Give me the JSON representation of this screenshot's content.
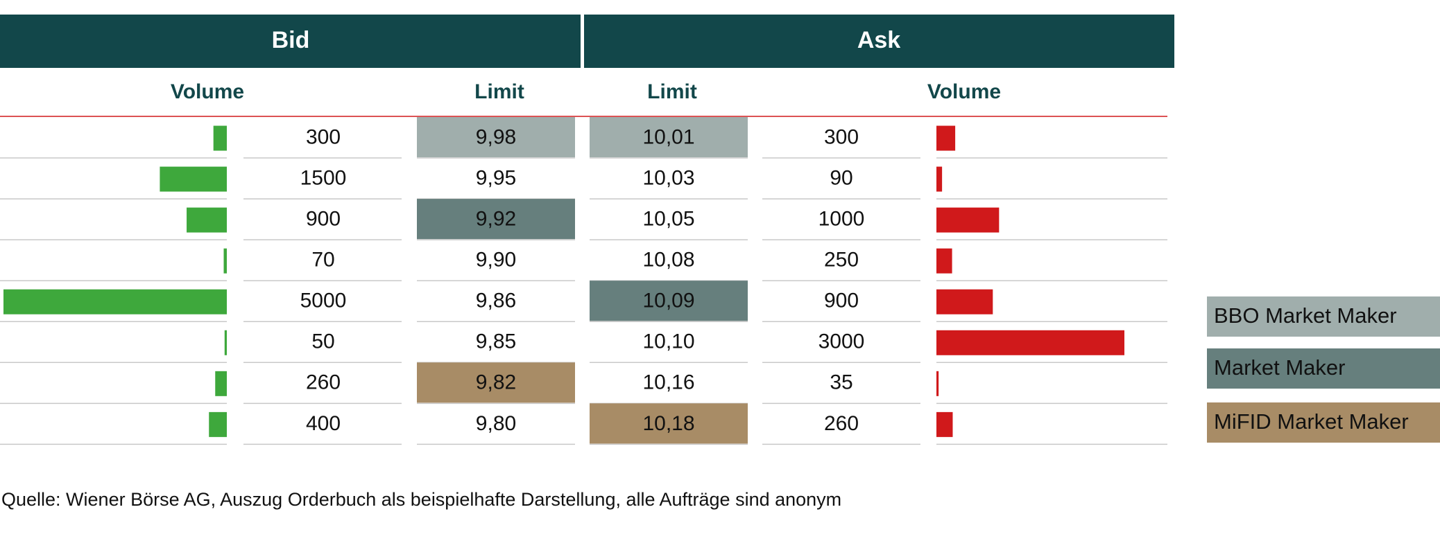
{
  "header": {
    "bid": "Bid",
    "ask": "Ask"
  },
  "columns": {
    "bid_volume": "Volume",
    "bid_limit": "Limit",
    "ask_limit": "Limit",
    "ask_volume": "Volume"
  },
  "bid": {
    "volumes": [
      300,
      1500,
      900,
      70,
      5000,
      50,
      260,
      400
    ],
    "limits": [
      "9,98",
      "9,95",
      "9,92",
      "9,90",
      "9,86",
      "9,85",
      "9,82",
      "9,80"
    ],
    "limit_colors": [
      "#a0aeac",
      null,
      "#667f7d",
      null,
      null,
      null,
      "#a88c66",
      null
    ],
    "bar_color": "#3ea83c"
  },
  "ask": {
    "volumes": [
      300,
      90,
      1000,
      250,
      900,
      3000,
      35,
      260
    ],
    "limits": [
      "10,01",
      "10,03",
      "10,05",
      "10,08",
      "10,09",
      "10,10",
      "10,16",
      "10,18"
    ],
    "limit_colors": [
      "#a0aeac",
      null,
      null,
      null,
      "#667f7d",
      null,
      null,
      "#a88c66"
    ],
    "bar_color": "#d0191b"
  },
  "legend": [
    {
      "label": "BBO Market Maker",
      "color": "#a0aeac"
    },
    {
      "label": "Market Maker",
      "color": "#667f7d"
    },
    {
      "label": "MiFID Market Maker",
      "color": "#a88c66"
    }
  ],
  "source": "Quelle: Wiener Börse AG, Auszug Orderbuch als beispielhafte Darstellung, alle Aufträge sind anonym"
}
